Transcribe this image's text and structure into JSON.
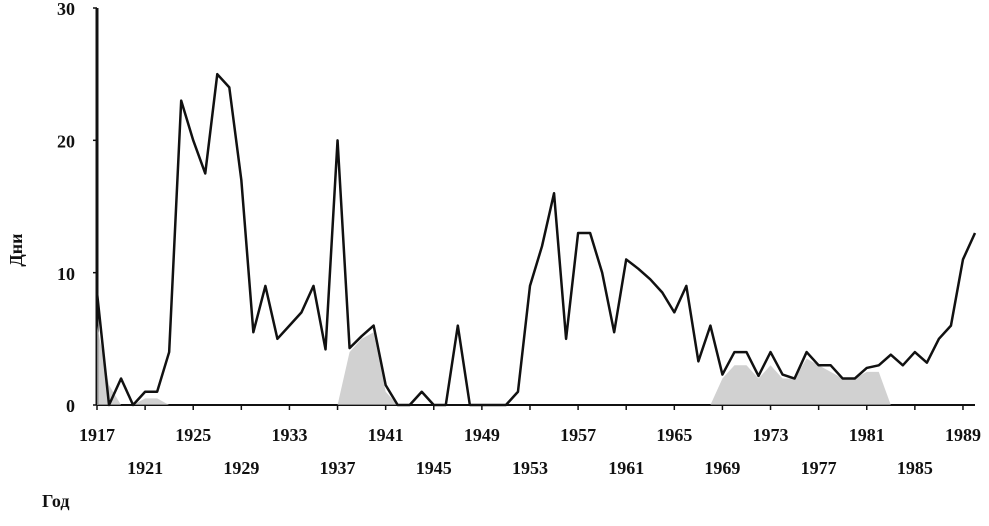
{
  "chart_data": {
    "type": "line",
    "y_label": "Дни",
    "x_label": "Год",
    "x": [
      1917,
      1918,
      1919,
      1920,
      1921,
      1922,
      1923,
      1924,
      1925,
      1926,
      1927,
      1928,
      1929,
      1930,
      1931,
      1932,
      1933,
      1934,
      1935,
      1936,
      1937,
      1938,
      1939,
      1940,
      1941,
      1942,
      1943,
      1944,
      1945,
      1946,
      1947,
      1948,
      1949,
      1950,
      1951,
      1952,
      1953,
      1954,
      1955,
      1956,
      1957,
      1958,
      1959,
      1960,
      1961,
      1962,
      1963,
      1964,
      1965,
      1966,
      1967,
      1968,
      1969,
      1970,
      1971,
      1972,
      1973,
      1974,
      1975,
      1976,
      1977,
      1978,
      1979,
      1980,
      1981,
      1982,
      1983,
      1984,
      1985,
      1986,
      1987,
      1988,
      1989,
      1990
    ],
    "series": [
      {
        "color": "#111111",
        "values": [
          8.5,
          0,
          2,
          0,
          1,
          1,
          4,
          23,
          20,
          17.5,
          25,
          24,
          17,
          5.5,
          9,
          5,
          6,
          7,
          9,
          4.2,
          20,
          4.3,
          5.2,
          6,
          1.5,
          0,
          0,
          1,
          0,
          0,
          6,
          0,
          0,
          0,
          0,
          1,
          9,
          12,
          16,
          5,
          13,
          13,
          10,
          5.5,
          11,
          10.3,
          9.5,
          8.5,
          7,
          9,
          3.3,
          6,
          2.3,
          4,
          4,
          2.2,
          4,
          2.3,
          2,
          4,
          3,
          3,
          2,
          2,
          2.8,
          3,
          3.8,
          3,
          4,
          3.2,
          5,
          6,
          11,
          13
        ]
      },
      {
        "color": "#bdbdbd",
        "values": [
          6,
          1.5,
          0,
          0,
          0.5,
          0.5,
          0,
          0,
          0,
          0,
          0,
          0,
          0,
          0,
          0,
          0,
          0,
          0,
          0,
          0,
          0,
          4,
          5,
          5.5,
          1,
          0,
          0,
          0,
          0,
          0,
          0,
          0,
          0,
          0,
          0,
          0,
          0,
          0,
          0,
          0,
          0,
          0,
          0,
          0,
          0,
          0,
          0,
          0,
          0,
          0,
          0,
          0,
          2,
          3,
          3,
          2,
          3,
          2,
          2,
          3.5,
          3,
          2.5,
          2,
          2,
          2.5,
          2.5,
          0,
          0,
          0,
          0,
          0,
          0,
          0,
          0
        ]
      }
    ],
    "xlim": [
      1917,
      1990
    ],
    "xticks": [
      1917,
      1921,
      1925,
      1929,
      1933,
      1937,
      1941,
      1945,
      1949,
      1953,
      1957,
      1961,
      1965,
      1969,
      1973,
      1977,
      1981,
      1985,
      1989
    ],
    "ylim": [
      0,
      30
    ],
    "yticks": [
      0,
      10,
      20,
      30
    ],
    "grid": false
  }
}
